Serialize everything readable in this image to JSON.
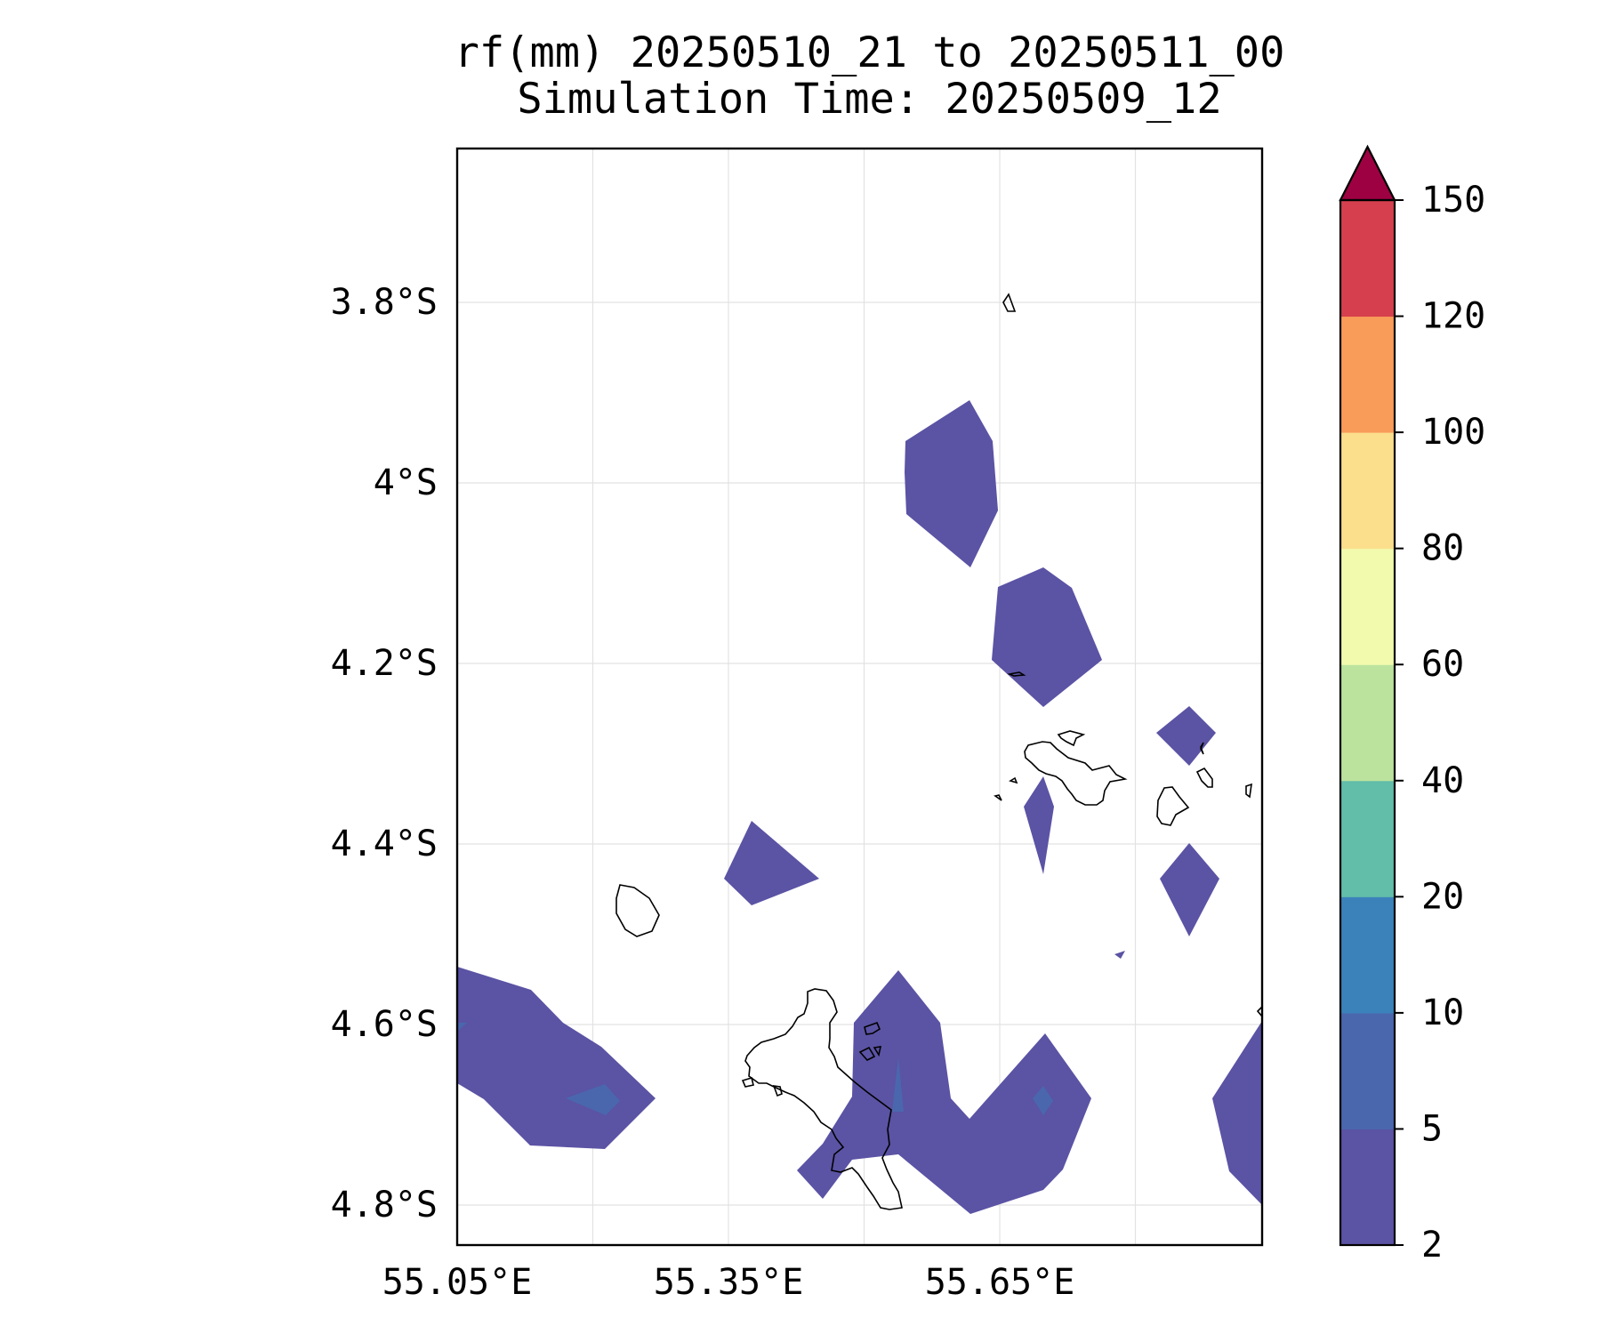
{
  "title": {
    "line1": "rf(mm) 20250510_21 to 20250511_00",
    "line2": "Simulation Time: 20250509_12"
  },
  "axes": {
    "y_ticks": [
      {
        "value": -3.8,
        "label": "3.8°S"
      },
      {
        "value": -4.0,
        "label": "4°S"
      },
      {
        "value": -4.2,
        "label": "4.2°S"
      },
      {
        "value": -4.4,
        "label": "4.4°S"
      },
      {
        "value": -4.6,
        "label": "4.6°S"
      },
      {
        "value": -4.8,
        "label": "4.8°S"
      }
    ],
    "x_ticks": [
      {
        "value": 55.05,
        "label": "55.05°E"
      },
      {
        "value": 55.35,
        "label": "55.35°E"
      },
      {
        "value": 55.65,
        "label": "55.65°E"
      }
    ],
    "x_grid": [
      55.05,
      55.2,
      55.35,
      55.5,
      55.65,
      55.8
    ],
    "xlim": [
      55.05,
      55.94
    ],
    "ylim": [
      -4.84,
      -3.63
    ],
    "grid": true
  },
  "colorbar": {
    "levels": [
      "2",
      "5",
      "10",
      "20",
      "40",
      "60",
      "80",
      "100",
      "120",
      "150"
    ],
    "colors": [
      "#5b53a4",
      "#4a67ae",
      "#3b82bb",
      "#62bda9",
      "#bce39e",
      "#f2faae",
      "#fbdf8c",
      "#f99c59",
      "#d6404e"
    ],
    "extend_color": "#9e0142"
  },
  "fill_colors": {
    "band_2_5": "#5b53a4",
    "band_5_10": "#4a67ae"
  }
}
